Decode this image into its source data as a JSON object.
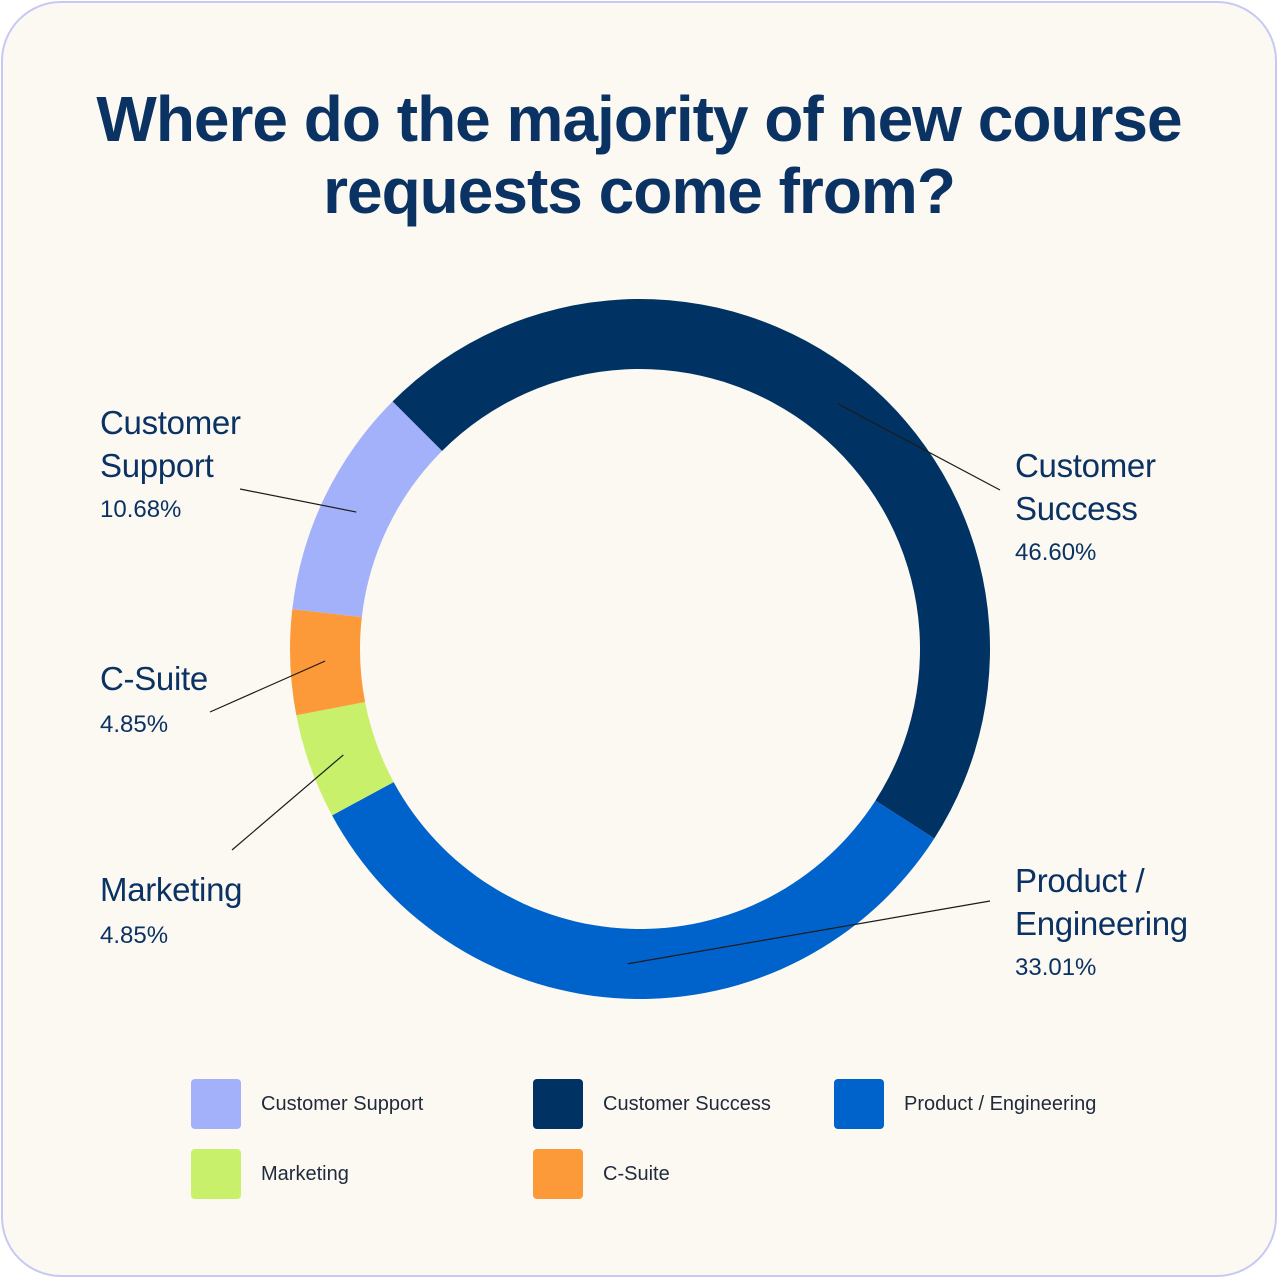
{
  "chart_data": {
    "type": "pie",
    "title_lines": [
      "Where do the majority of new course",
      "requests come from?"
    ],
    "categories": [
      "Customer Support",
      "Customer Success",
      "Product / Engineering",
      "Marketing",
      "C-Suite"
    ],
    "values": [
      10.68,
      46.6,
      33.01,
      4.85,
      4.85
    ],
    "value_labels": [
      "10.68%",
      "46.60%",
      "33.01%",
      "4.85%",
      "4.85%"
    ],
    "colors": [
      "#a3b1fb",
      "#003363",
      "#0063cc",
      "#c9f06a",
      "#fc9a3a"
    ],
    "donut": true,
    "slice_order_clockwise_from_top": [
      "Customer Success",
      "Product / Engineering",
      "Marketing",
      "C-Suite",
      "Customer Support"
    ],
    "callout_lines": {
      "Customer Support": [
        "Customer",
        "Support"
      ],
      "Customer Success": [
        "Customer",
        "Success"
      ],
      "Product / Engineering": [
        "Product /",
        "Engineering"
      ],
      "Marketing": [
        "Marketing"
      ],
      "C-Suite": [
        "C-Suite"
      ]
    },
    "legend_placement": "bottom"
  }
}
